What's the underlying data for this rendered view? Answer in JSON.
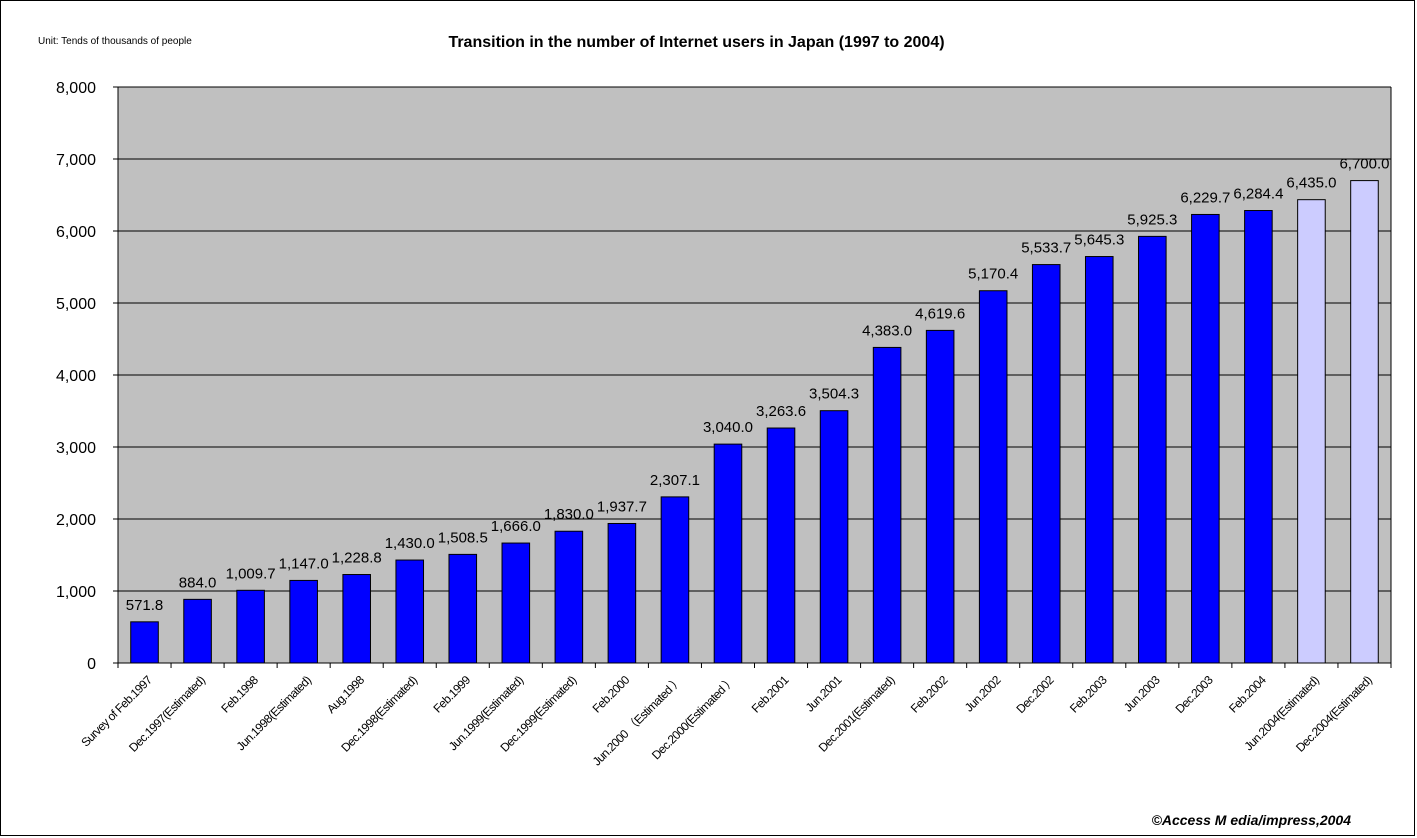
{
  "unit_label": "Unit: Tends of thousands of people",
  "copyright": "©Access M edia/impress,2004",
  "colors": {
    "plot_background": "#c0c0c0",
    "actual_bar": "#0000ff",
    "estimated_future_bar": "#ccccff",
    "gridline": "#000000"
  },
  "chart_data": {
    "type": "bar",
    "title": "Transition in the number of Internet users in Japan (1997 to 2004)",
    "xlabel": "",
    "ylabel": "",
    "ylim": [
      0,
      8000
    ],
    "yticks": [
      0,
      1000,
      2000,
      3000,
      4000,
      5000,
      6000,
      7000,
      8000
    ],
    "ytick_labels": [
      "0",
      "1,000",
      "2,000",
      "3,000",
      "4,000",
      "5,000",
      "6,000",
      "7,000",
      "8,000"
    ],
    "grid": true,
    "legend": "none",
    "categories": [
      "Survey of Feb.1997",
      "Dec.1997(Estimated)",
      "Feb.1998",
      "Jun.1998(Estimated)",
      "Aug.1998",
      "Dec.1998(Estimated)",
      "Feb.1999",
      "Jun.1999(Estimated)",
      "Dec.1999(Estimated)",
      "Feb.2000",
      "Jun.2000 （Estimated ）",
      "Dec.2000(Estimated ）",
      "Feb.2001",
      "Jun.2001",
      "Dec.2001(Estimated)",
      "Feb.2002",
      "Jun.2002",
      "Dec.2002",
      "Feb.2003",
      "Jun.2003",
      "Dec.2003",
      "Feb.2004",
      "Jun.2004(Estimated)",
      "Dec.2004(Estimated)"
    ],
    "values": [
      571.8,
      884.0,
      1009.7,
      1147.0,
      1228.8,
      1430.0,
      1508.5,
      1666.0,
      1830.0,
      1937.7,
      2307.1,
      3040.0,
      3263.6,
      3504.3,
      4383.0,
      4619.6,
      5170.4,
      5533.7,
      5645.3,
      5925.3,
      6229.7,
      6284.4,
      6435.0,
      6700.0
    ],
    "value_labels": [
      "571.8",
      "884.0",
      "1,009.7",
      "1,147.0",
      "1,228.8",
      "1,430.0",
      "1,508.5",
      "1,666.0",
      "1,830.0",
      "1,937.7",
      "2,307.1",
      "3,040.0",
      "3,263.6",
      "3,504.3",
      "4,383.0",
      "4,619.6",
      "5,170.4",
      "5,533.7",
      "5,645.3",
      "5,925.3",
      "6,229.7",
      "6,284.4",
      "6,435.0",
      "6,700.0"
    ],
    "bar_styles": [
      "actual",
      "actual",
      "actual",
      "actual",
      "actual",
      "actual",
      "actual",
      "actual",
      "actual",
      "actual",
      "actual",
      "actual",
      "actual",
      "actual",
      "actual",
      "actual",
      "actual",
      "actual",
      "actual",
      "actual",
      "actual",
      "actual",
      "estimated_future",
      "estimated_future"
    ]
  }
}
